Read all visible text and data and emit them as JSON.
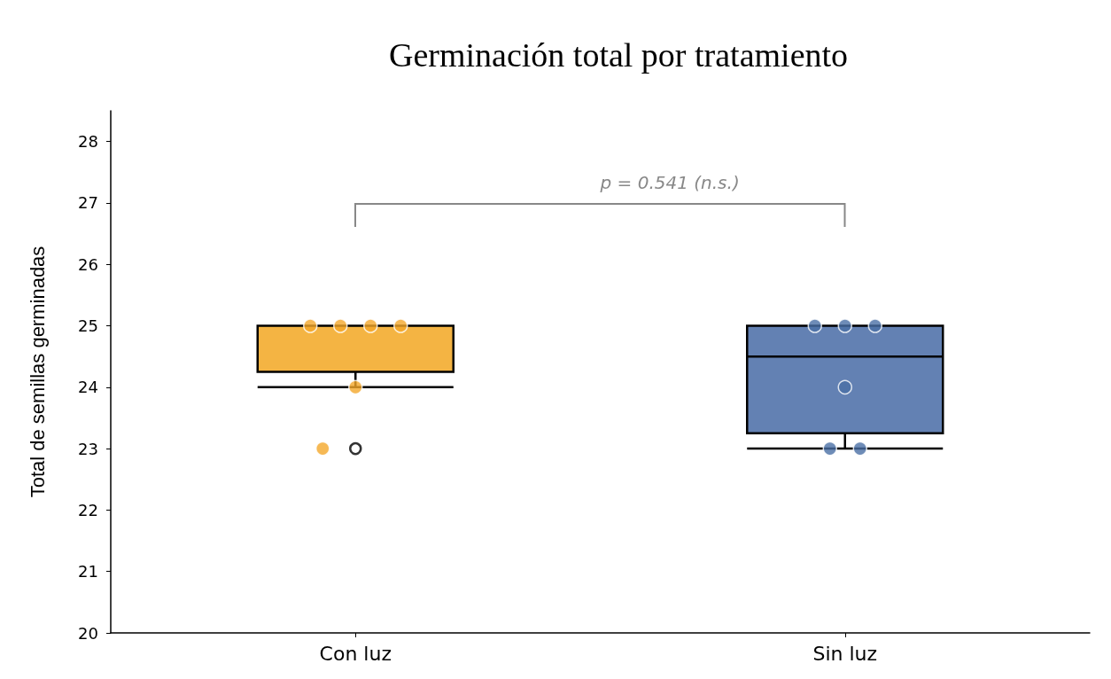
{
  "chart_data": {
    "type": "box",
    "title": "Germinación total por tratamiento",
    "ylabel": "Total de semillas germinadas",
    "categories": [
      "Con luz",
      "Sin luz"
    ],
    "ylim": [
      20,
      28.5
    ],
    "yticks": [
      20,
      21,
      22,
      23,
      24,
      25,
      26,
      27,
      28
    ],
    "grid": false,
    "series": [
      {
        "type": "box",
        "colors": [
          "#f4b443",
          "#6381b3"
        ],
        "boxes": [
          {
            "low": 24,
            "q1": 24.25,
            "median": 25,
            "q3": 25,
            "high": 25,
            "outliers": [
              23
            ]
          },
          {
            "low": 23,
            "q1": 23.25,
            "median": 24.5,
            "q3": 25,
            "high": 25
          }
        ]
      },
      {
        "type": "scatter",
        "marker": "circle",
        "x": [
          "Con luz",
          "Con luz",
          "Con luz",
          "Con luz",
          "Con luz",
          "Con luz",
          "Sin luz",
          "Sin luz",
          "Sin luz",
          "Sin luz",
          "Sin luz",
          "Sin luz"
        ],
        "values": [
          25,
          25,
          25,
          25,
          24,
          23,
          25,
          25,
          25,
          24,
          23,
          23
        ],
        "colors": [
          "#f4a72a",
          "#f4a72a",
          "#f4a72a",
          "#f4a72a",
          "#f4a72a",
          "#f4a72a",
          "#4a6fa5",
          "#4a6fa5",
          "#4a6fa5",
          "#4a6fa5",
          "#4a6fa5",
          "#4a6fa5"
        ]
      }
    ],
    "annotations": [
      "p = 0.541 (n.s.)"
    ]
  }
}
